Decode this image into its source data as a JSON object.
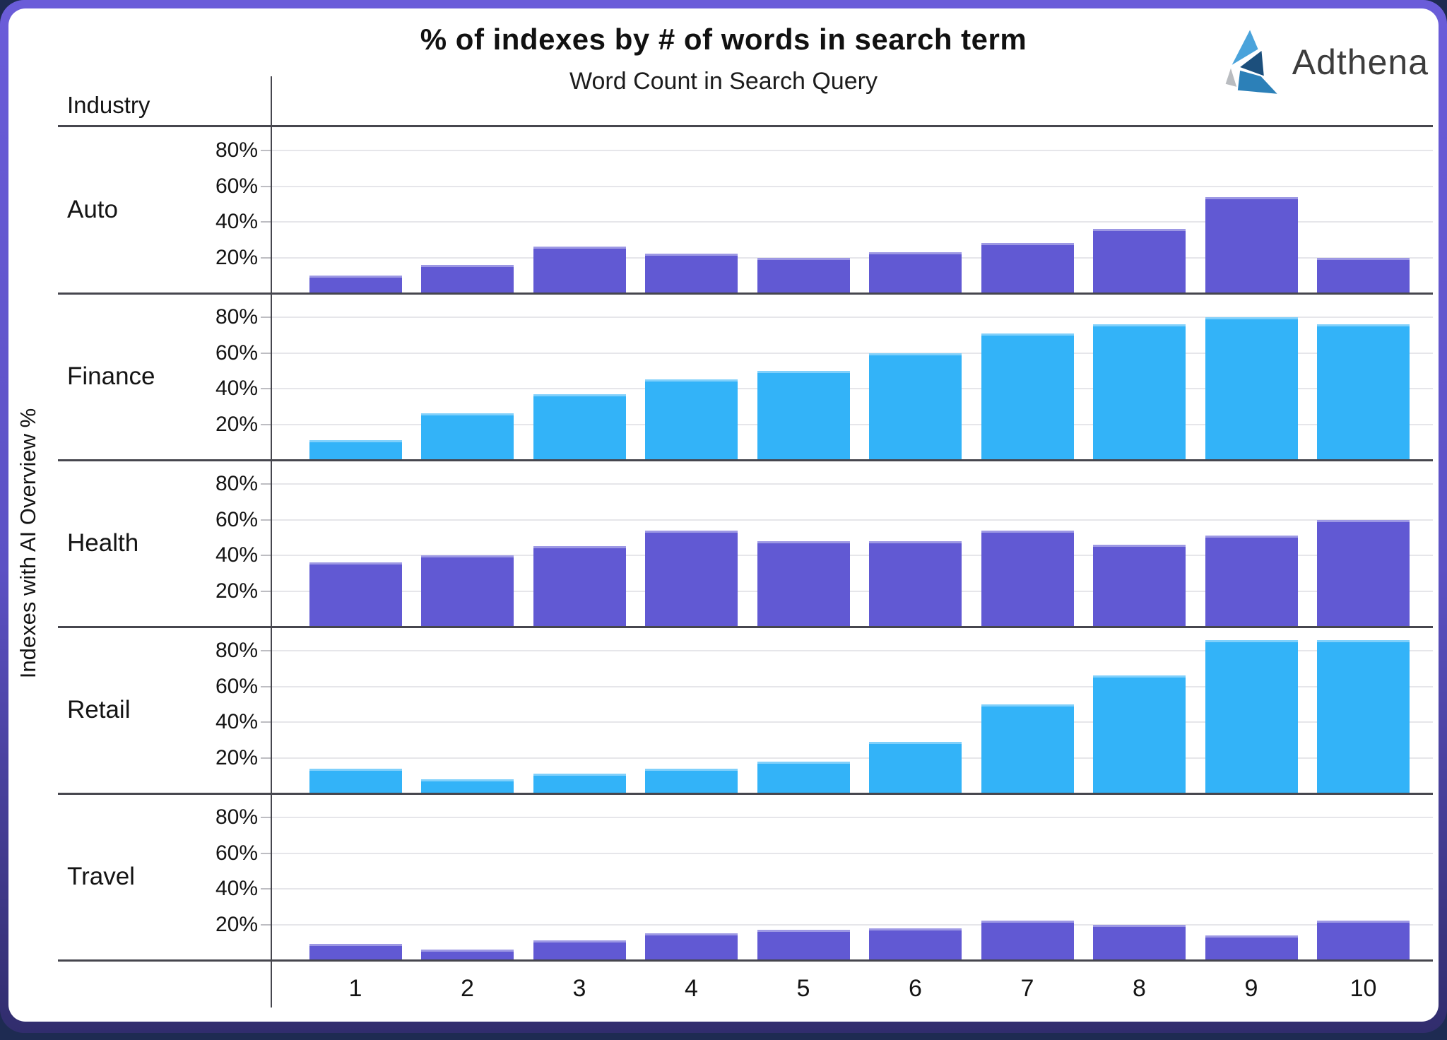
{
  "title": "% of indexes by # of words in search term",
  "subtitle": "Word Count in Search Query",
  "logo_text": "Adthena",
  "industry_header": "Industry",
  "y_axis_title": "Indexes with AI Overview %",
  "colors": {
    "purple_bar": "#6159d3",
    "blue_bar": "#33b3f8",
    "separator": "#46464e",
    "gridline": "#e6e6ea",
    "frame_top": "#6a5cd9",
    "frame_bottom": "#312d6d",
    "page_background": "#1e2b52",
    "logo_lightblue": "#4aa3db",
    "logo_navy": "#1c4f7c",
    "logo_midblue": "#2c80b8",
    "logo_gray": "#b9bcc0"
  },
  "chart_data": {
    "type": "bar",
    "title": "% of indexes by # of words in search term",
    "xlabel": "Word Count in Search Query",
    "ylabel": "Indexes with AI Overview %",
    "facet_label": "Industry",
    "x": [
      1,
      2,
      3,
      4,
      5,
      6,
      7,
      8,
      9,
      10
    ],
    "yticks": [
      20,
      40,
      60,
      80
    ],
    "ytick_labels": [
      "20%",
      "40%",
      "60%",
      "80%"
    ],
    "ylim": [
      0,
      93
    ],
    "grid": true,
    "legend": "none",
    "series": [
      {
        "name": "Auto",
        "color": "purple_bar",
        "values": [
          10,
          16,
          26,
          22,
          20,
          23,
          28,
          36,
          54,
          20
        ]
      },
      {
        "name": "Finance",
        "color": "blue_bar",
        "values": [
          11,
          26,
          37,
          45,
          50,
          60,
          71,
          76,
          80,
          76
        ]
      },
      {
        "name": "Health",
        "color": "purple_bar",
        "values": [
          36,
          40,
          45,
          54,
          48,
          48,
          54,
          46,
          51,
          60
        ]
      },
      {
        "name": "Retail",
        "color": "blue_bar",
        "values": [
          14,
          8,
          11,
          14,
          18,
          29,
          50,
          66,
          86,
          86
        ]
      },
      {
        "name": "Travel",
        "color": "purple_bar",
        "values": [
          9,
          6,
          11,
          15,
          17,
          18,
          22,
          20,
          14,
          22
        ]
      }
    ]
  }
}
